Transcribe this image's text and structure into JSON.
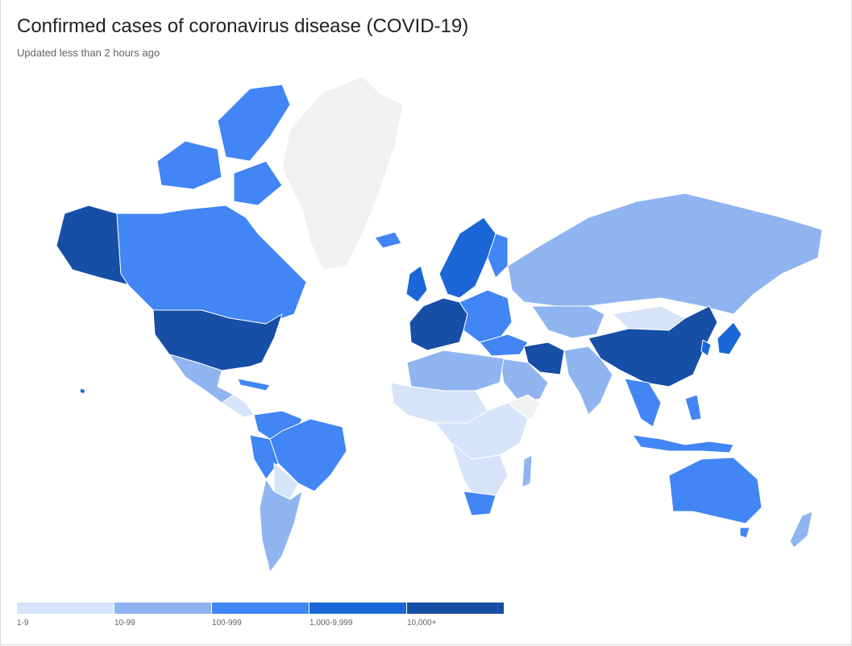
{
  "header": {
    "title": "Confirmed cases of coronavirus disease (COVID-19)",
    "subtitle": "Updated less than 2 hours ago"
  },
  "colors": {
    "no_data": "#f1f1f1",
    "band_1_9": "#d6e4f9",
    "band_10_99": "#8fb4f0",
    "band_100_999": "#4285f4",
    "band_1000_9999": "#1a66d6",
    "band_10000_plus": "#174ea6",
    "border": "#ffffff"
  },
  "legend": {
    "items": [
      {
        "label": "1-9",
        "color": "#d6e4f9"
      },
      {
        "label": "10-99",
        "color": "#8fb4f0"
      },
      {
        "label": "100-999",
        "color": "#4285f4"
      },
      {
        "label": "1,000-9,999",
        "color": "#1a66d6"
      },
      {
        "label": "10,000+",
        "color": "#174ea6"
      }
    ]
  }
}
